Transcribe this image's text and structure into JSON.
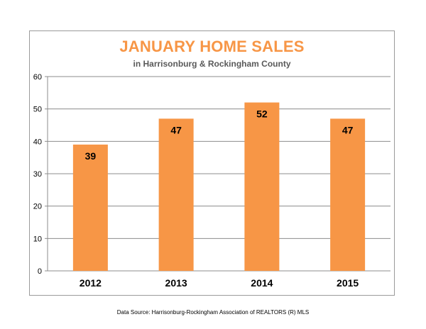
{
  "chart_data": {
    "type": "bar",
    "title": "JANUARY HOME SALES",
    "subtitle": "in Harrisonburg & Rockingham County",
    "categories": [
      "2012",
      "2013",
      "2014",
      "2015"
    ],
    "values": [
      39,
      47,
      52,
      47
    ],
    "data_labels": [
      "39",
      "47",
      "52",
      "47"
    ],
    "ylim": [
      0,
      60
    ],
    "yticks": [
      0,
      10,
      20,
      30,
      40,
      50,
      60
    ],
    "grid": true,
    "bar_color": "#f79646",
    "title_color": "#f79646",
    "source": "Data Source: Harrisonburg-Rockingham Association of REALTORS (R) MLS"
  }
}
